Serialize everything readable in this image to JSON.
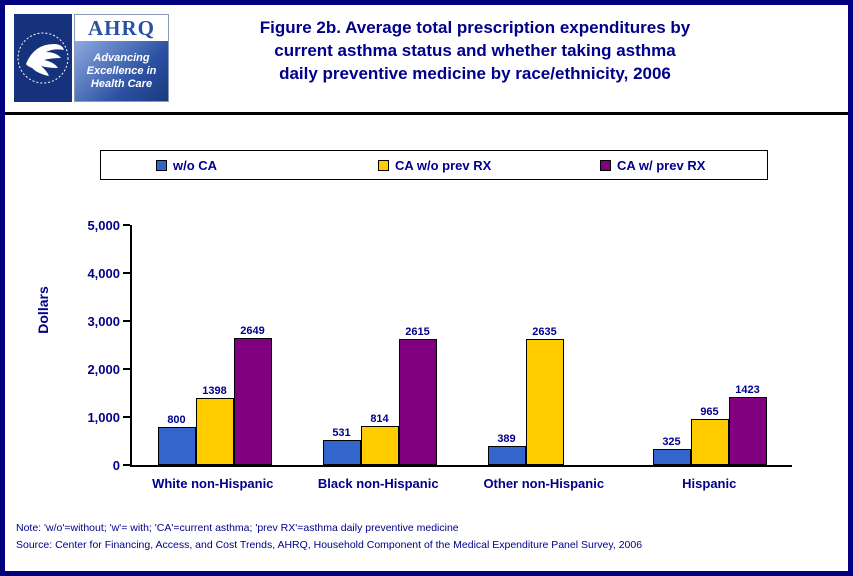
{
  "page": {
    "border_color": "#000080",
    "background": "#ffffff",
    "title_color": "#00008B"
  },
  "header": {
    "title_lines": [
      "Figure 2b. Average total prescription expenditures by",
      "current asthma status and whether taking asthma",
      "daily preventive medicine by race/ethnicity, 2006"
    ],
    "logos": {
      "hhs_alt": "U.S. Department of Health and Human Services seal",
      "ahrq_acronym": "AHRQ",
      "ahrq_tagline_lines": [
        "Advancing",
        "Excellence in",
        "Health Care"
      ]
    }
  },
  "legend": {
    "items": [
      {
        "label": "w/o CA",
        "color": "#3366CC"
      },
      {
        "label": "CA w/o prev RX",
        "color": "#FFCC00"
      },
      {
        "label": "CA w/ prev RX",
        "color": "#800080"
      }
    ]
  },
  "chart_data": {
    "type": "bar",
    "title": "Figure 2b. Average total prescription expenditures by current asthma status and whether taking asthma daily preventive medicine by race/ethnicity, 2006",
    "xlabel": "",
    "ylabel": "Dollars",
    "ylim": [
      0,
      5000
    ],
    "ytick_labels": [
      "5,000",
      "4,000",
      "3,000",
      "2,000",
      "1,000",
      "0"
    ],
    "grid": false,
    "legend_position": "top",
    "categories": [
      "White non-Hispanic",
      "Black non-Hispanic",
      "Other non-Hispanic",
      "Hispanic"
    ],
    "series": [
      {
        "name": "w/o CA",
        "color": "#3366CC",
        "values": [
          800,
          531,
          389,
          325
        ]
      },
      {
        "name": "CA w/o prev RX",
        "color": "#FFCC00",
        "values": [
          1398,
          814,
          2635,
          965
        ]
      },
      {
        "name": "CA w/ prev RX",
        "color": "#800080",
        "values": [
          2649,
          2615,
          null,
          1423
        ]
      }
    ]
  },
  "footer": {
    "note": "Note: 'w/o'=without; 'w'= with; 'CA'=current asthma; 'prev RX'=asthma daily preventive medicine",
    "source": "Source: Center for Financing, Access, and Cost Trends, AHRQ, Household Component of the Medical Expenditure Panel Survey, 2006"
  }
}
